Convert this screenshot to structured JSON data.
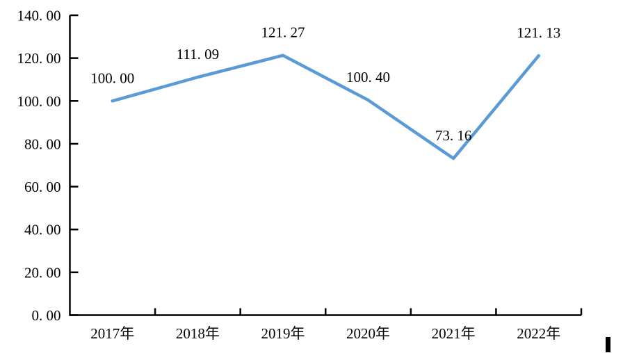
{
  "chart_data": {
    "type": "line",
    "title": "",
    "xlabel": "",
    "ylabel": "",
    "categories": [
      "2017年",
      "2018年",
      "2019年",
      "2020年",
      "2021年",
      "2022年"
    ],
    "series": [
      {
        "name": "index-series",
        "values": [
          100.0,
          111.09,
          121.27,
          100.4,
          73.16,
          121.13
        ]
      }
    ],
    "point_labels": [
      "100. 00",
      "111. 09",
      "121. 27",
      "100. 40",
      "73. 16",
      "121. 13"
    ],
    "ylim": [
      0,
      140
    ],
    "y_ticks": [
      0,
      20,
      40,
      60,
      80,
      100,
      120,
      140
    ],
    "y_tick_labels": [
      "0. 00",
      "20. 00",
      "40. 00",
      "60. 00",
      "80. 00",
      "100. 00",
      "120. 00",
      "140. 00"
    ],
    "grid": "off",
    "legend": "none",
    "line_color": "#5B9BD5",
    "axis_color": "#000000",
    "text_color": "#000000"
  },
  "decorations": {
    "cursor_bar": {
      "color": "#000000"
    }
  }
}
